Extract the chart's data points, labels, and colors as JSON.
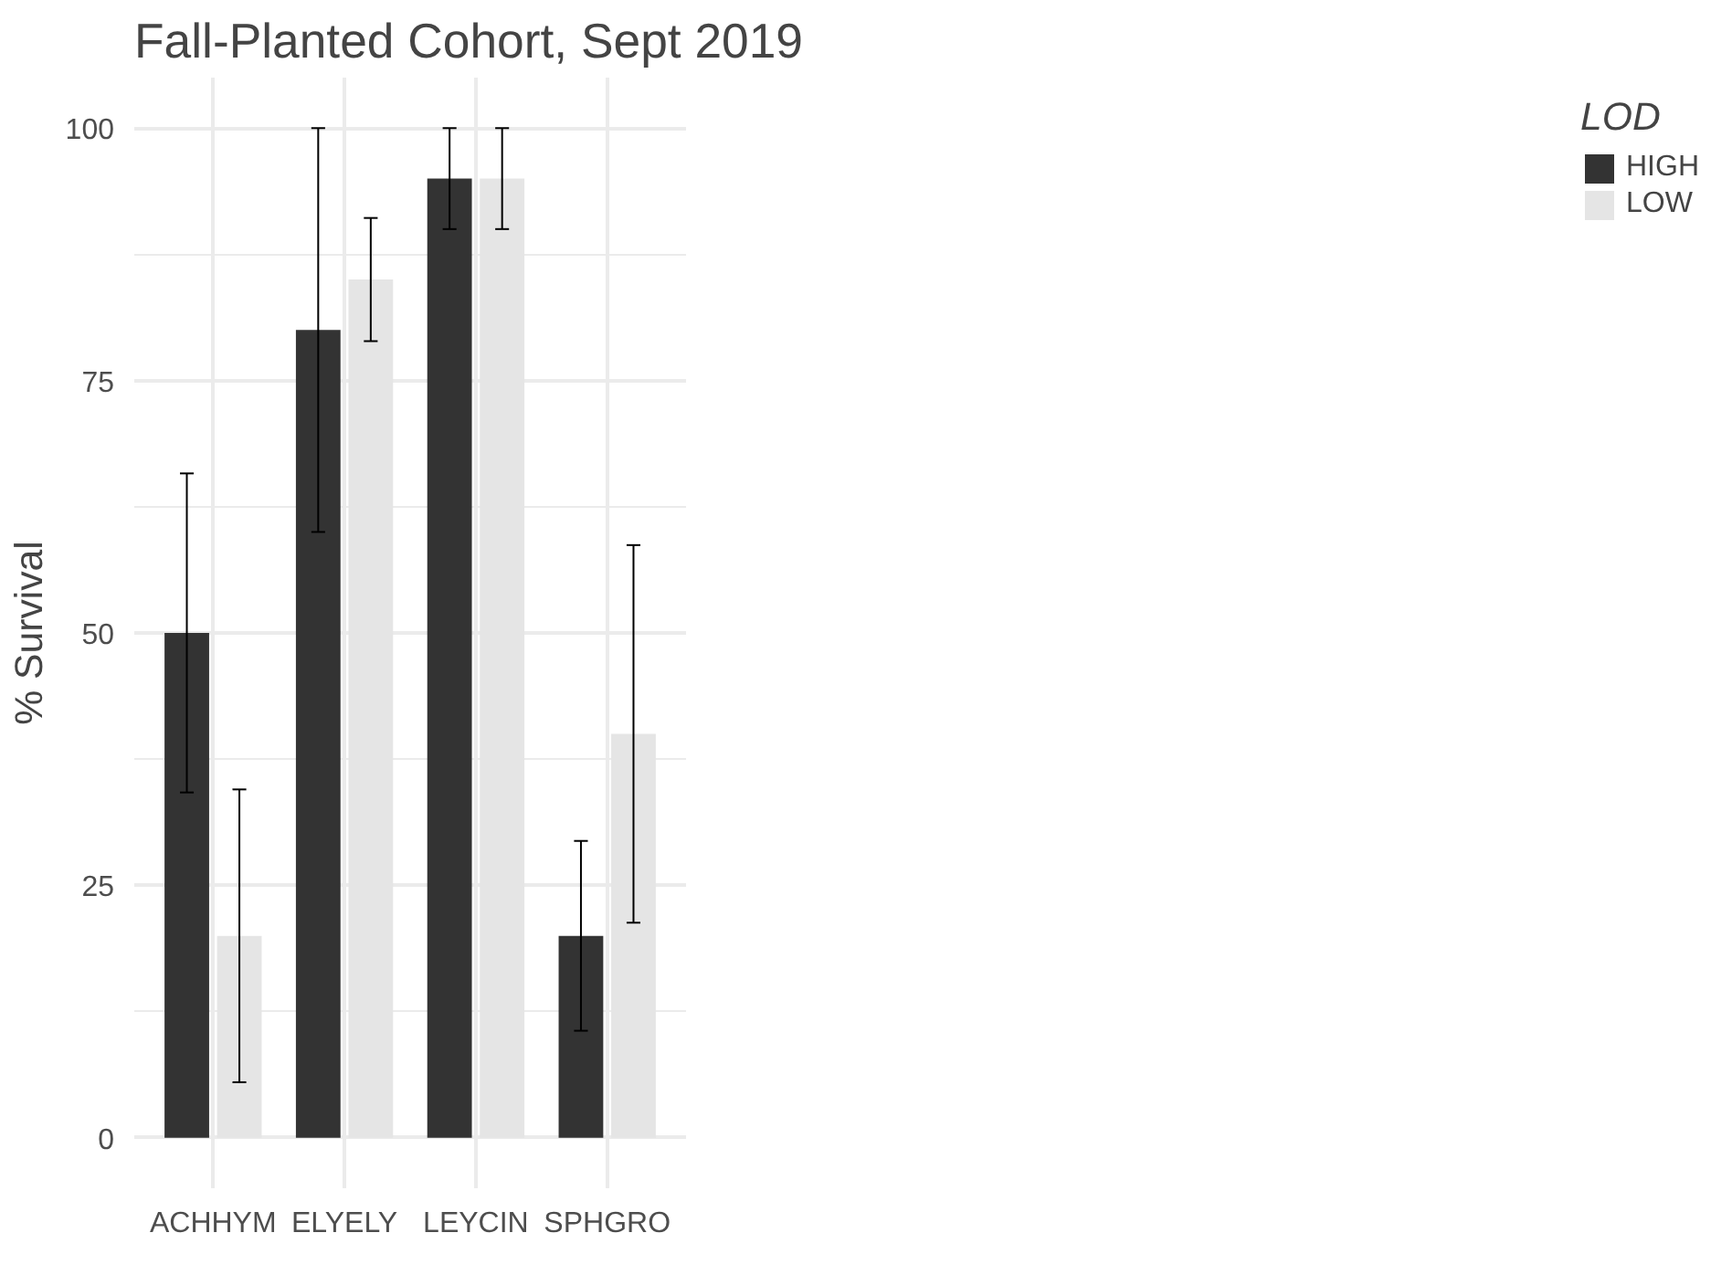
{
  "chart_data": {
    "type": "bar",
    "title": "Fall-Planted Cohort, Sept 2019",
    "ylabel": "% Survival",
    "legend_title": "LOD",
    "categories": [
      "ACHHYM",
      "ELYELY",
      "LEYCIN",
      "SPHGRO"
    ],
    "series": [
      {
        "name": "HIGH",
        "color": "#333333",
        "values": [
          50,
          80,
          95,
          20
        ],
        "errors": [
          15.8,
          20,
          5,
          9.4
        ]
      },
      {
        "name": "LOW",
        "color": "#e5e5e5",
        "values": [
          20,
          85,
          95,
          40
        ],
        "errors": [
          14.5,
          6.1,
          5,
          18.7
        ]
      }
    ],
    "ylim": [
      -5,
      105
    ],
    "yticks": [
      0,
      25,
      50,
      75,
      100
    ],
    "grid": true,
    "legend": "right"
  }
}
